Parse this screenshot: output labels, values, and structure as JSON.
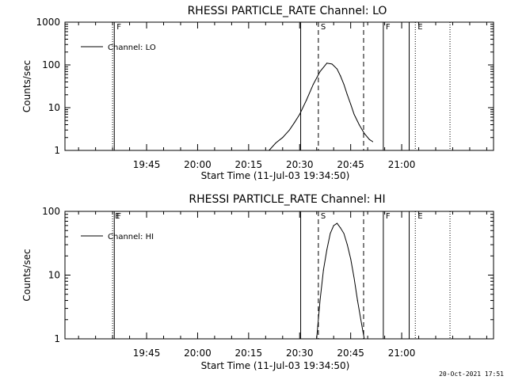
{
  "footer_timestamp": "20-Oct-2021 17:51",
  "chart_data": [
    {
      "type": "line",
      "title": "RHESSI PARTICLE_RATE Channel: LO",
      "xlabel": "Start Time (11-Jul-03 19:34:50)",
      "ylabel": "Counts/sec",
      "y_scale": "log",
      "ylim": [
        1,
        1000
      ],
      "y_ticks": [
        1,
        10,
        100,
        1000
      ],
      "y_tick_labels": [
        "1",
        "10",
        "100",
        "1000"
      ],
      "x_range_min": [
        -14,
        112
      ],
      "x_ticks_min": [
        10,
        25,
        40,
        55,
        70,
        85
      ],
      "x_tick_labels": [
        "19:45",
        "20:00",
        "20:15",
        "20:30",
        "20:45",
        "21:00"
      ],
      "legend": {
        "label": "Channel: LO",
        "placement": "top-left"
      },
      "series": [
        {
          "name": "Channel: LO",
          "x": [
            46.0,
            48.0,
            50.0,
            52.0,
            53.5,
            55.0,
            57.0,
            59.0,
            61.0,
            63.0,
            64.5,
            66.0,
            67.0,
            68.0,
            69.0,
            70.0,
            71.0,
            72.5,
            74.0,
            75.5,
            76.5
          ],
          "y": [
            1.0,
            1.5,
            2.0,
            3.0,
            4.5,
            7.0,
            15.0,
            35.0,
            70.0,
            110.0,
            105.0,
            80.0,
            55.0,
            35.0,
            20.0,
            12.0,
            7.0,
            4.0,
            2.5,
            1.8,
            1.6
          ]
        }
      ],
      "markers": [
        {
          "label": "",
          "x": 0.0,
          "style": "dotted"
        },
        {
          "label": "F",
          "x": 0.5,
          "style": "solid"
        },
        {
          "label": "",
          "x": 55.3,
          "style": "solid"
        },
        {
          "label": "S",
          "x": 60.5,
          "style": "dashed"
        },
        {
          "label": "",
          "x": 73.8,
          "style": "dashed"
        },
        {
          "label": "F",
          "x": 79.6,
          "style": "solid"
        },
        {
          "label": "",
          "x": 87.2,
          "style": "solid"
        },
        {
          "label": "E",
          "x": 89.0,
          "style": "dotted"
        },
        {
          "label": "",
          "x": 99.2,
          "style": "dotted"
        }
      ]
    },
    {
      "type": "line",
      "title": "RHESSI PARTICLE_RATE Channel: HI",
      "xlabel": "Start Time (11-Jul-03 19:34:50)",
      "ylabel": "Counts/sec",
      "y_scale": "log",
      "ylim": [
        1,
        100
      ],
      "y_ticks": [
        1,
        10,
        100
      ],
      "y_tick_labels": [
        "1",
        "10",
        "100"
      ],
      "x_range_min": [
        -14,
        112
      ],
      "x_ticks_min": [
        10,
        25,
        40,
        55,
        70,
        85
      ],
      "x_tick_labels": [
        "19:45",
        "20:00",
        "20:15",
        "20:30",
        "20:45",
        "21:00"
      ],
      "legend": {
        "label": "Channel: HI",
        "placement": "top-left"
      },
      "series": [
        {
          "name": "Channel: HI",
          "x": [
            60.0,
            61.0,
            62.0,
            63.0,
            64.0,
            65.0,
            66.0,
            67.0,
            68.0,
            69.0,
            70.0,
            71.0,
            72.0,
            73.0,
            74.0
          ],
          "y": [
            1.0,
            4.0,
            12.0,
            25.0,
            45.0,
            60.0,
            65.0,
            55.0,
            45.0,
            30.0,
            18.0,
            9.0,
            4.0,
            2.0,
            1.0
          ]
        }
      ],
      "markers": [
        {
          "label": "E",
          "x": 0.0,
          "style": "dotted"
        },
        {
          "label": "F",
          "x": 0.5,
          "style": "solid"
        },
        {
          "label": "",
          "x": 55.3,
          "style": "solid"
        },
        {
          "label": "S",
          "x": 60.5,
          "style": "dashed"
        },
        {
          "label": "",
          "x": 73.8,
          "style": "dashed"
        },
        {
          "label": "F",
          "x": 79.6,
          "style": "solid"
        },
        {
          "label": "",
          "x": 87.2,
          "style": "solid"
        },
        {
          "label": "E",
          "x": 89.0,
          "style": "dotted"
        },
        {
          "label": "",
          "x": 99.2,
          "style": "dotted"
        }
      ]
    }
  ]
}
